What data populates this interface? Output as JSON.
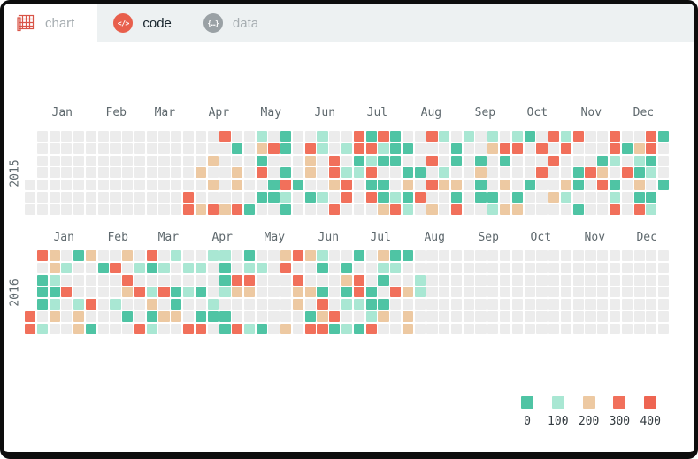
{
  "tabs": [
    {
      "id": "chart",
      "label": "chart",
      "icon": "calendar-grid-icon",
      "active": true
    },
    {
      "id": "code",
      "label": "code",
      "icon": "code-circle-icon",
      "active": false
    },
    {
      "id": "data",
      "label": "data",
      "icon": "data-circle-icon",
      "active": false
    }
  ],
  "chart_data": {
    "type": "heatmap",
    "subtype": "calendar-heatmap-by-year",
    "title": "",
    "month_labels": [
      "Jan",
      "Feb",
      "Mar",
      "Apr",
      "May",
      "Jun",
      "Jul",
      "Aug",
      "Sep",
      "Oct",
      "Nov",
      "Dec"
    ],
    "colors": {
      "empty": "#ececec",
      "buckets": [
        "#4fc4a4",
        "#a9e7d3",
        "#edc9a2",
        "#f1705b",
        "#ee6552"
      ]
    },
    "cell_encoding": {
      ".": "outside-year",
      "-": "no-data",
      "0": "0-100",
      "1": "100-200",
      "2": "200-300",
      "3": "300-400",
      "4": "400+"
    },
    "legend": {
      "position": "bottom-right",
      "labels": [
        "0",
        "100",
        "200",
        "300",
        "400"
      ],
      "colors": [
        "#4fc4a4",
        "#a9e7d3",
        "#edc9a2",
        "#f1705b",
        "#ee6552"
      ]
    },
    "month_center_cols": {
      "2015": [
        2.57,
        7.0,
        11.0,
        15.43,
        19.71,
        24.14,
        28.43,
        32.86,
        37.29,
        41.57,
        46.0,
        50.29
      ],
      "2016": [
        2.71,
        7.14,
        11.29,
        15.71,
        20.0,
        24.43,
        28.71,
        33.14,
        37.57,
        41.86,
        46.29,
        50.57
      ]
    },
    "years": [
      {
        "label": "2015",
        "data_range": "Apr 2015 - Dec 2015",
        "weeks": [
          "....---",
          "-------",
          "-------",
          "-------",
          "-------",
          "-------",
          "-------",
          "-------",
          "-------",
          "-------",
          "-------",
          "-------",
          "-------",
          "-----33",
          "---2--2",
          "--2-2-3",
          "3-----2",
          "-0-22-3",
          "------0",
          "1203-0-",
          "-3--00-",
          "00-0310",
          "----0--",
          "-322-0-",
          "11---1-",
          "--332-3",
          "-1-133-",
          "3301---",
          "031303-",
          "310-002",
          "000--13",
          "-0-0201",
          "---0-3-",
          "3-3-3-2",
          "1--12--",
          "-00-203",
          "1------",
          "--0200-",
          "12---01",
          "-30-2-2",
          "13---02",
          "0---0--",
          "-3-3---",
          "3-3--2-",
          "13--21-",
          "3--00-0",
          "---3---",
          "--023--",
          "331-013",
          "-0-3---",
          "-210203",
          "3301-01",
          "0---0.."
        ]
      },
      {
        "label": "2016",
        "data_range": "Jan 2016 - Aug 2016",
        "weeks": [
          ".....33",
          "3-000-1",
          "221012-",
          "-1-3---",
          "0---122",
          "2---3-0",
          "-0-----",
          "-3--1--",
          "2-32-0-",
          "-1-3--3",
          "30-1201",
          "-1-3-2-",
          "1--002-",
          "-1-1--3",
          "-1-0-03",
          "1---10-",
          "1001-00",
          "--32--3",
          "0132--1",
          "-1----0",
          "-------",
          "23----2",
          "3-322--",
          "2--2-03",
          "10-0323",
          "-----30",
          "-0201-1",
          "0-331-0",
          "---0013",
          "210-02-",
          "01-3---",
          "0--2-22",
          "--11---",
          "-------",
          "-------",
          "-------",
          "-------",
          "-------",
          "-------",
          "-------",
          "-------",
          "-------",
          "-------",
          "-------",
          "-------",
          "-------",
          "-------",
          "-------",
          "-------",
          "-------",
          "-------",
          "-------",
          "-------"
        ]
      }
    ]
  }
}
